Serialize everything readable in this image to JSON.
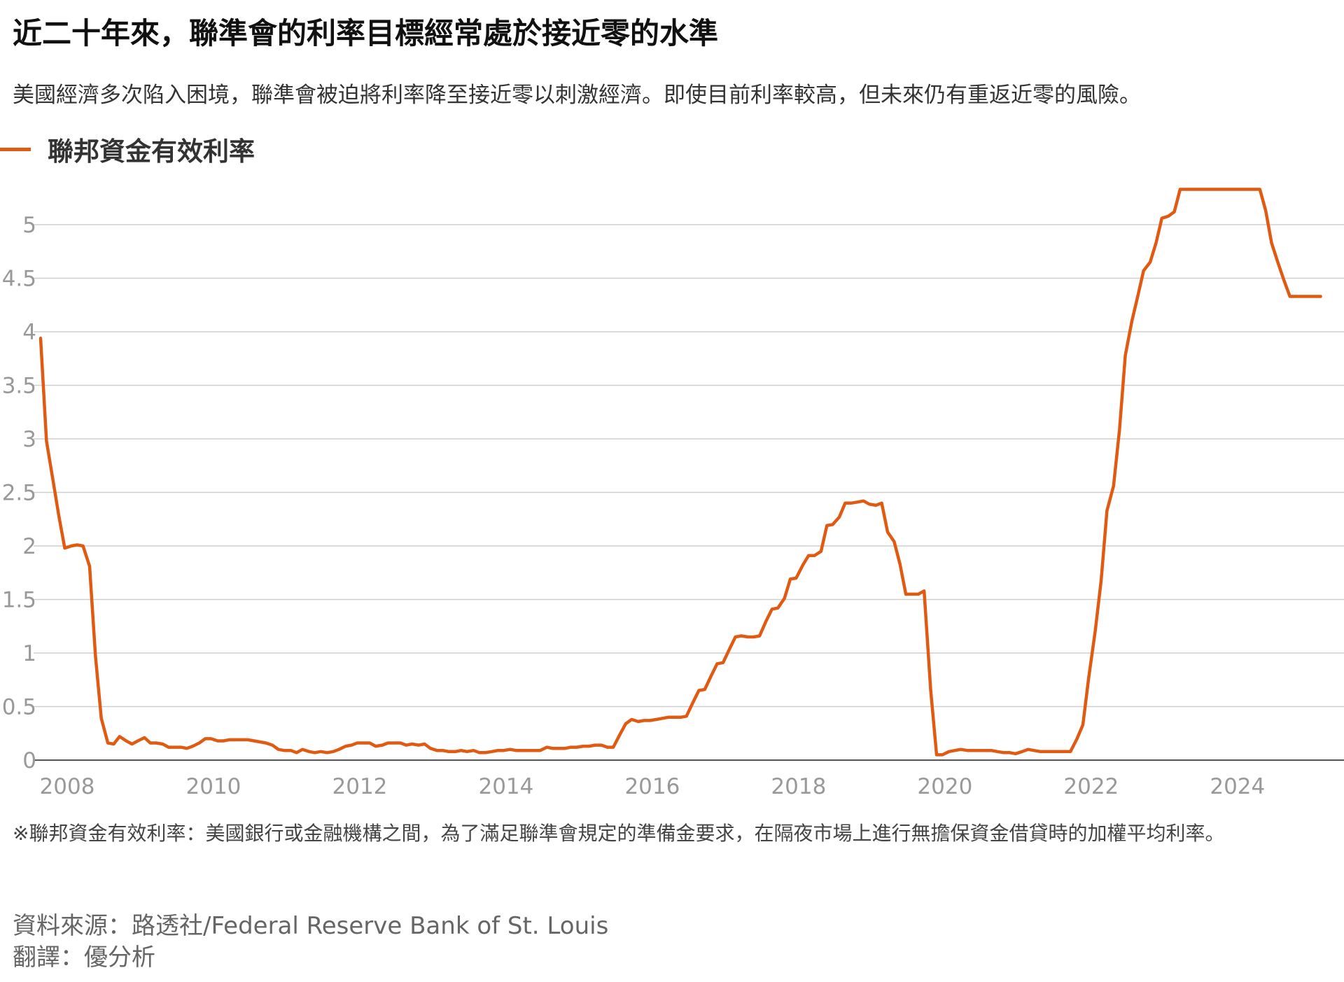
{
  "title": "近二十年來，聯準會的利率目標經常處於接近零的水準",
  "subtitle": "美國經濟多次陷入困境，聯準會被迫將利率降至接近零以刺激經濟。即使目前利率較高，但未來仍有重返近零的風險。",
  "note": "※聯邦資金有效利率：美國銀行或金融機構之間，為了滿足聯準會規定的準備金要求，在隔夜市場上進行無擔保資金借貸時的加權平均利率。",
  "source": "資料來源：路透社/Federal Reserve Bank of St. Louis",
  "translator": "翻譯：優分析",
  "chart_data": {
    "type": "line",
    "title": "近二十年來，聯準會的利率目標經常處於接近零的水準",
    "xlabel": "",
    "ylabel": "",
    "xlim": [
      2008,
      2025.6
    ],
    "ylim": [
      0,
      5.5
    ],
    "x_ticks": [
      "2008",
      "2010",
      "2012",
      "2014",
      "2016",
      "2018",
      "2020",
      "2022",
      "2024"
    ],
    "y_ticks": [
      "0",
      "0.5",
      "1",
      "1.5",
      "2",
      "2.5",
      "3",
      "3.5",
      "4",
      "4.5",
      "5"
    ],
    "grid": true,
    "legend_position": "top-left",
    "series": [
      {
        "name": "聯邦資金有效利率",
        "color": "#e15a12",
        "x": [
          2008.0,
          2008.08,
          2008.17,
          2008.25,
          2008.33,
          2008.42,
          2008.5,
          2008.58,
          2008.67,
          2008.75,
          2008.83,
          2008.92,
          2009.0,
          2009.08,
          2009.17,
          2009.25,
          2009.33,
          2009.42,
          2009.5,
          2009.58,
          2009.67,
          2009.75,
          2009.83,
          2009.92,
          2010.0,
          2010.08,
          2010.17,
          2010.25,
          2010.33,
          2010.42,
          2010.5,
          2010.58,
          2010.67,
          2010.75,
          2010.83,
          2010.92,
          2011.0,
          2011.08,
          2011.17,
          2011.25,
          2011.33,
          2011.42,
          2011.5,
          2011.58,
          2011.67,
          2011.75,
          2011.83,
          2011.92,
          2012.0,
          2012.08,
          2012.17,
          2012.25,
          2012.33,
          2012.42,
          2012.5,
          2012.58,
          2012.67,
          2012.75,
          2012.83,
          2012.92,
          2013.0,
          2013.08,
          2013.17,
          2013.25,
          2013.33,
          2013.42,
          2013.5,
          2013.58,
          2013.67,
          2013.75,
          2013.83,
          2013.92,
          2014.0,
          2014.08,
          2014.17,
          2014.25,
          2014.33,
          2014.42,
          2014.5,
          2014.58,
          2014.67,
          2014.75,
          2014.83,
          2014.92,
          2015.0,
          2015.08,
          2015.17,
          2015.25,
          2015.33,
          2015.42,
          2015.5,
          2015.58,
          2015.67,
          2015.75,
          2015.83,
          2015.92,
          2016.0,
          2016.08,
          2016.17,
          2016.25,
          2016.33,
          2016.42,
          2016.5,
          2016.58,
          2016.67,
          2016.75,
          2016.83,
          2016.92,
          2017.0,
          2017.08,
          2017.17,
          2017.25,
          2017.33,
          2017.42,
          2017.5,
          2017.58,
          2017.67,
          2017.75,
          2017.83,
          2017.92,
          2018.0,
          2018.08,
          2018.17,
          2018.25,
          2018.33,
          2018.42,
          2018.5,
          2018.58,
          2018.67,
          2018.75,
          2018.83,
          2018.92,
          2019.0,
          2019.08,
          2019.17,
          2019.25,
          2019.33,
          2019.42,
          2019.5,
          2019.58,
          2019.67,
          2019.75,
          2019.83,
          2019.92,
          2020.0,
          2020.08,
          2020.17,
          2020.25,
          2020.33,
          2020.42,
          2020.5,
          2020.58,
          2020.67,
          2020.75,
          2020.83,
          2020.92,
          2021.0,
          2021.08,
          2021.17,
          2021.25,
          2021.33,
          2021.42,
          2021.5,
          2021.58,
          2021.67,
          2021.75,
          2021.83,
          2021.92,
          2022.0,
          2022.08,
          2022.17,
          2022.25,
          2022.33,
          2022.42,
          2022.5,
          2022.58,
          2022.67,
          2022.75,
          2022.83,
          2022.92,
          2023.0,
          2023.08,
          2023.17,
          2023.25,
          2023.33,
          2023.42,
          2023.5,
          2023.58,
          2023.67,
          2023.75,
          2023.83,
          2023.92,
          2024.0,
          2024.08,
          2024.17,
          2024.25,
          2024.33,
          2024.42,
          2024.5,
          2024.58,
          2024.67,
          2024.75,
          2024.83,
          2024.92,
          2025.0,
          2025.08,
          2025.17,
          2025.25,
          2025.33,
          2025.42,
          2025.5
        ],
        "values": [
          3.94,
          2.98,
          2.61,
          2.28,
          1.98,
          2.0,
          2.01,
          2.0,
          1.81,
          0.97,
          0.39,
          0.16,
          0.15,
          0.22,
          0.18,
          0.15,
          0.18,
          0.21,
          0.16,
          0.16,
          0.15,
          0.12,
          0.12,
          0.12,
          0.11,
          0.13,
          0.16,
          0.2,
          0.2,
          0.18,
          0.18,
          0.19,
          0.19,
          0.19,
          0.19,
          0.18,
          0.17,
          0.16,
          0.14,
          0.1,
          0.09,
          0.09,
          0.07,
          0.1,
          0.08,
          0.07,
          0.08,
          0.07,
          0.08,
          0.1,
          0.13,
          0.14,
          0.16,
          0.16,
          0.16,
          0.13,
          0.14,
          0.16,
          0.16,
          0.16,
          0.14,
          0.15,
          0.14,
          0.15,
          0.11,
          0.09,
          0.09,
          0.08,
          0.08,
          0.09,
          0.08,
          0.09,
          0.07,
          0.07,
          0.08,
          0.09,
          0.09,
          0.1,
          0.09,
          0.09,
          0.09,
          0.09,
          0.09,
          0.12,
          0.11,
          0.11,
          0.11,
          0.12,
          0.12,
          0.13,
          0.13,
          0.14,
          0.14,
          0.12,
          0.12,
          0.24,
          0.34,
          0.38,
          0.36,
          0.37,
          0.37,
          0.38,
          0.39,
          0.4,
          0.4,
          0.4,
          0.41,
          0.54,
          0.65,
          0.66,
          0.79,
          0.9,
          0.91,
          1.04,
          1.15,
          1.16,
          1.15,
          1.15,
          1.16,
          1.3,
          1.41,
          1.42,
          1.51,
          1.69,
          1.7,
          1.82,
          1.91,
          1.91,
          1.95,
          2.19,
          2.2,
          2.27,
          2.4,
          2.4,
          2.41,
          2.42,
          2.39,
          2.38,
          2.4,
          2.13,
          2.04,
          1.83,
          1.55,
          1.55,
          1.55,
          1.58,
          0.65,
          0.05,
          0.05,
          0.08,
          0.09,
          0.1,
          0.09,
          0.09,
          0.09,
          0.09,
          0.09,
          0.08,
          0.07,
          0.07,
          0.06,
          0.08,
          0.1,
          0.09,
          0.08,
          0.08,
          0.08,
          0.08,
          0.08,
          0.08,
          0.2,
          0.33,
          0.77,
          1.21,
          1.68,
          2.33,
          2.56,
          3.08,
          3.78,
          4.1,
          4.33,
          4.57,
          4.65,
          4.83,
          5.06,
          5.08,
          5.12,
          5.33,
          5.33,
          5.33,
          5.33,
          5.33,
          5.33,
          5.33,
          5.33,
          5.33,
          5.33,
          5.33,
          5.33,
          5.33,
          5.33,
          5.13,
          4.83,
          4.64,
          4.48,
          4.33,
          4.33,
          4.33,
          4.33,
          4.33,
          4.33
        ]
      }
    ]
  }
}
